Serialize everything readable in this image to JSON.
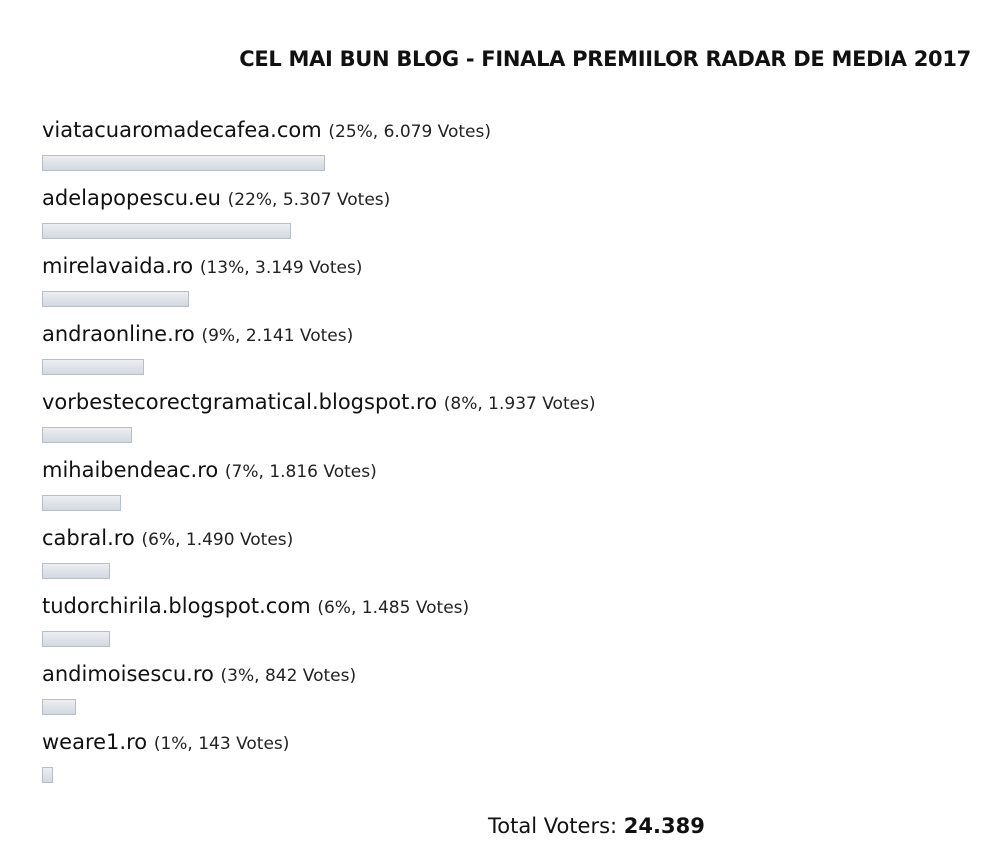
{
  "chart_data": {
    "type": "bar",
    "orientation": "horizontal",
    "title": "CEL MAI BUN BLOG - FINALA PREMIILOR RADAR DE MEDIA 2017",
    "categories": [
      "viatacuaromadecafea.com",
      "adelapopescu.eu",
      "mirelavaida.ro",
      "andraonline.ro",
      "vorbestecorectgramatical.blogspot.ro",
      "mihaibendeac.ro",
      "cabral.ro",
      "tudorchirila.blogspot.com",
      "andimoisescu.ro",
      "weare1.ro"
    ],
    "values": [
      25,
      22,
      13,
      9,
      8,
      7,
      6,
      6,
      3,
      1
    ],
    "value_labels": [
      "(25%, 6.079 Votes)",
      "(22%, 5.307 Votes)",
      "(13%, 3.149 Votes)",
      "(9%, 2.141 Votes)",
      "(8%, 1.937 Votes)",
      "(7%, 1.816 Votes)",
      "(6%, 1.490 Votes)",
      "(6%, 1.485 Votes)",
      "(3%, 842 Votes)",
      "(1%, 143 Votes)"
    ],
    "color": "#d3d8e0",
    "total_label": "Total Voters:",
    "total": "24.389"
  }
}
